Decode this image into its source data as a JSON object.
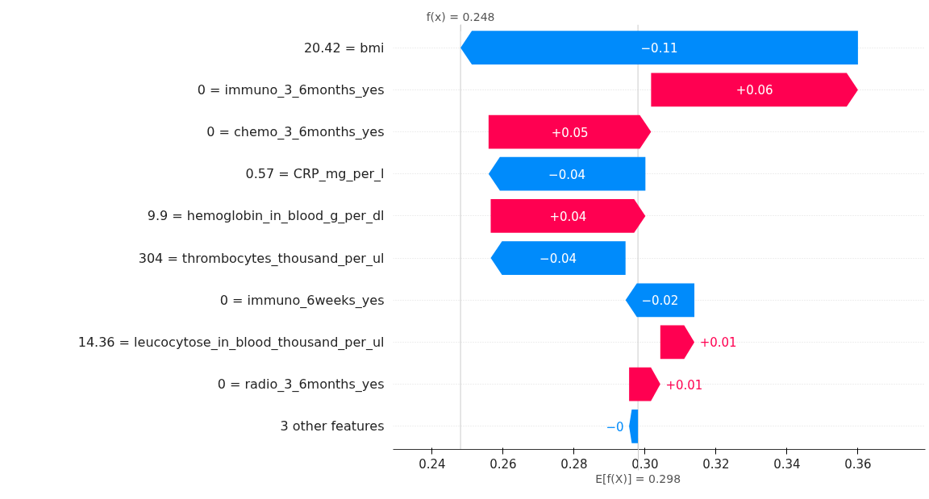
{
  "chart_data": {
    "type": "bar",
    "orientation": "horizontal",
    "categories": [
      "20.42 = bmi",
      "0 = immuno_3_6months_yes",
      "0 = chemo_3_6months_yes",
      "0.57 = CRP_mg_per_l",
      "9.9 = hemoglobin_in_blood_g_per_dl",
      "304 = thrombocytes_thousand_per_ul",
      "0 = immuno_6weeks_yes",
      "14.36 = leucocytose_in_blood_thousand_per_ul",
      "0 = radio_3_6months_yes",
      "3 other features"
    ],
    "base": [
      0.36,
      0.3017,
      0.2559,
      0.3001,
      0.2565,
      0.2945,
      0.3139,
      0.3043,
      0.2955,
      0.298
    ],
    "values": [
      -0.112,
      0.0583,
      0.0458,
      -0.0442,
      0.0436,
      -0.038,
      -0.0194,
      0.0096,
      0.0088,
      -0.0025
    ],
    "value_labels": [
      "−0.11",
      "+0.06",
      "+0.05",
      "−0.04",
      "+0.04",
      "−0.04",
      "−0.02",
      "+0.01",
      "+0.01",
      "−0"
    ],
    "colors": [
      "#008bfb",
      "#ff0051",
      "#ff0051",
      "#008bfb",
      "#ff0051",
      "#008bfb",
      "#008bfb",
      "#ff0051",
      "#ff0051",
      "#008bfb"
    ],
    "xlim": [
      0.229,
      0.379
    ],
    "xticks": [
      0.24,
      0.26,
      0.28,
      {
        "value": 0.3,
        "label": "0.30"
      },
      0.32,
      0.34,
      0.36
    ],
    "ref_lines": [
      {
        "axis": "x",
        "value": 0.248,
        "label": "f(x) = 0.248"
      },
      {
        "axis": "x",
        "value": 0.298,
        "label": "E[f(X)] = 0.298"
      }
    ],
    "grid": "y"
  }
}
